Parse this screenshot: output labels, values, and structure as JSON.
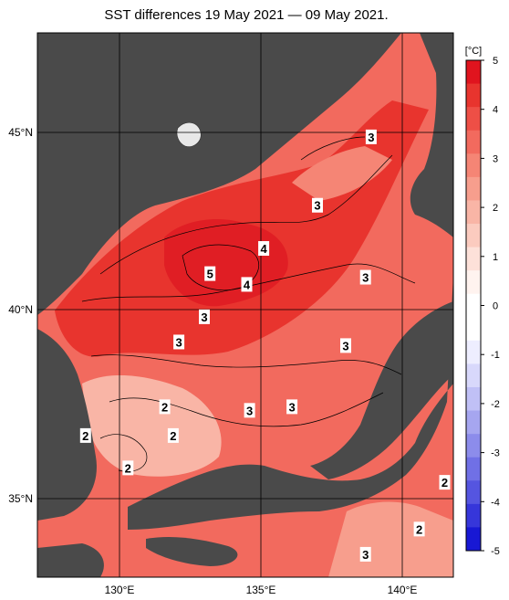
{
  "title": "SST differences 19 May 2021 — 09 May 2021.",
  "colorbar": {
    "unit": "[°C]",
    "range": [
      -5,
      5
    ],
    "ticks": [
      "5",
      "4",
      "3",
      "2",
      "1",
      "0",
      "-1",
      "-2",
      "-3",
      "-4",
      "-5"
    ],
    "colors_top_to_bottom": [
      "#e0141e",
      "#e8342e",
      "#ee4f46",
      "#f26a5e",
      "#f58575",
      "#f79e8d",
      "#f9b5a6",
      "#fbcbbf",
      "#fde1d9",
      "#fff3ef",
      "#ffffff",
      "#ffffff",
      "#eeeeff",
      "#d8d8fb",
      "#c0c0f6",
      "#a6a6f0",
      "#8c8ceb",
      "#7070e6",
      "#5555e0",
      "#3636da",
      "#1818d4"
    ]
  },
  "axes": {
    "lat_labels": [
      "45°N",
      "40°N",
      "35°N"
    ],
    "lon_labels": [
      "130°E",
      "135°E",
      "140°E"
    ]
  },
  "contour_labels": [
    {
      "text": "3",
      "lon": 138.9,
      "lat": 44.8
    },
    {
      "text": "3",
      "lon": 137.0,
      "lat": 42.9
    },
    {
      "text": "4",
      "lon": 135.1,
      "lat": 41.7
    },
    {
      "text": "5",
      "lon": 133.2,
      "lat": 41.0
    },
    {
      "text": "4",
      "lon": 134.5,
      "lat": 40.7
    },
    {
      "text": "3",
      "lon": 138.7,
      "lat": 40.9
    },
    {
      "text": "3",
      "lon": 133.0,
      "lat": 39.8
    },
    {
      "text": "3",
      "lon": 132.1,
      "lat": 39.1
    },
    {
      "text": "3",
      "lon": 138.0,
      "lat": 39.0
    },
    {
      "text": "2",
      "lon": 131.6,
      "lat": 37.3
    },
    {
      "text": "3",
      "lon": 134.6,
      "lat": 37.2
    },
    {
      "text": "3",
      "lon": 136.1,
      "lat": 37.3
    },
    {
      "text": "2",
      "lon": 128.8,
      "lat": 36.5
    },
    {
      "text": "2",
      "lon": 131.9,
      "lat": 36.5
    },
    {
      "text": "2",
      "lon": 130.3,
      "lat": 35.6
    },
    {
      "text": "2",
      "lon": 141.5,
      "lat": 35.2
    },
    {
      "text": "2",
      "lon": 140.6,
      "lat": 33.9
    },
    {
      "text": "3",
      "lon": 138.7,
      "lat": 33.2
    }
  ],
  "colors": {
    "land": "#4a4a4a",
    "sea_base": "#f26a5e",
    "sea_hot": "#e8342e",
    "sea_cool": "#f9b5a6",
    "grid": "#000000"
  }
}
